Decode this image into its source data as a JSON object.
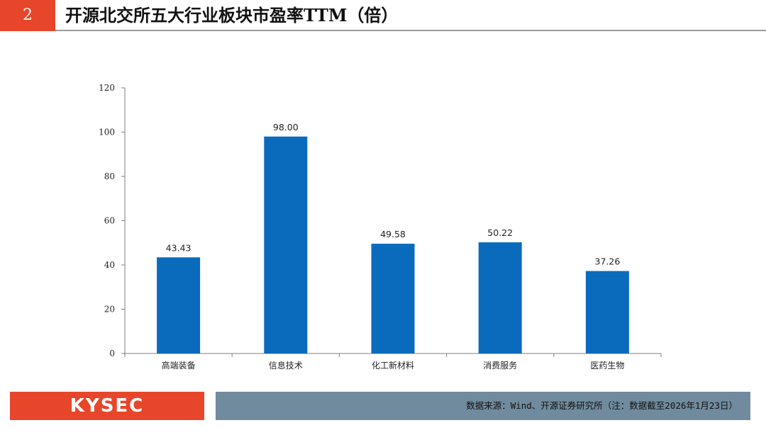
{
  "header": {
    "slide_number": "2",
    "title": "开源北交所五大行业板块市盈率TTM（倍）"
  },
  "chart_data": {
    "type": "bar",
    "categories": [
      "高端装备",
      "信息技术",
      "化工新材料",
      "消费服务",
      "医药生物"
    ],
    "values": [
      43.43,
      98.0,
      49.58,
      50.22,
      37.26
    ],
    "data_labels": [
      "43.43",
      "98.00",
      "49.58",
      "50.22",
      "37.26"
    ],
    "ylim": [
      0,
      120
    ],
    "yticks": [
      0,
      20,
      40,
      60,
      80,
      100,
      120
    ],
    "grid": false,
    "legend": "none",
    "bar_color": "#0a6bbd"
  },
  "footer": {
    "logo": "KYSEC",
    "source": "数据来源：Wind、开源证券研究所（注：数据截至2026年1月23日）"
  },
  "colors": {
    "accent": "#e8462a",
    "footer_bar": "#708b9e"
  }
}
